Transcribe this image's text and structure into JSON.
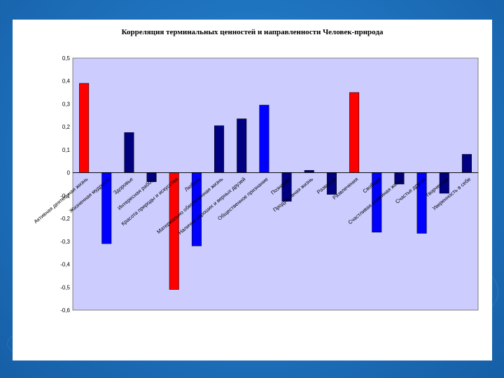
{
  "chart_data": {
    "type": "bar",
    "title": "Корреляция терминальных ценностей и направленности Человек-природа",
    "xlabel": "",
    "ylabel": "",
    "ylim": [
      -0.6,
      0.5
    ],
    "yticks": [
      "0,5",
      "0,4",
      "0,3",
      "0,2",
      "0,1",
      "0",
      "-0,1",
      "-0,2",
      "-0,3",
      "-0,4",
      "-0,5",
      "-0,6"
    ],
    "grid": false,
    "legend": "none",
    "plot_background": "#ccccff",
    "categories": [
      "Активная деятельная жизнь",
      "Жизненная мудрость",
      "Здоровье",
      "Интересная работа",
      "Красота природы и искусства",
      "Любовь",
      "Материально обеспеченная жизнь",
      "Наличие хороших и верных друзей",
      "Общественное признание",
      "Познание",
      "Продуктивная жизнь",
      "Развитие",
      "Развлечения",
      "Свобода",
      "Счастливая семейная жизнь",
      "Счастье других",
      "Творчество",
      "Уверенность в себе"
    ],
    "values": [
      0.39,
      -0.31,
      0.175,
      -0.04,
      -0.51,
      -0.32,
      0.205,
      0.235,
      0.295,
      -0.125,
      0.01,
      -0.095,
      0.35,
      -0.26,
      -0.05,
      -0.265,
      -0.09,
      0.08
    ],
    "bar_colors": [
      "#ff0000",
      "#0000ff",
      "#000080",
      "#000080",
      "#ff0000",
      "#0000ff",
      "#000080",
      "#000080",
      "#0000ff",
      "#000080",
      "#000080",
      "#000080",
      "#ff0000",
      "#0000ff",
      "#000080",
      "#0000ff",
      "#000080",
      "#000080"
    ]
  }
}
